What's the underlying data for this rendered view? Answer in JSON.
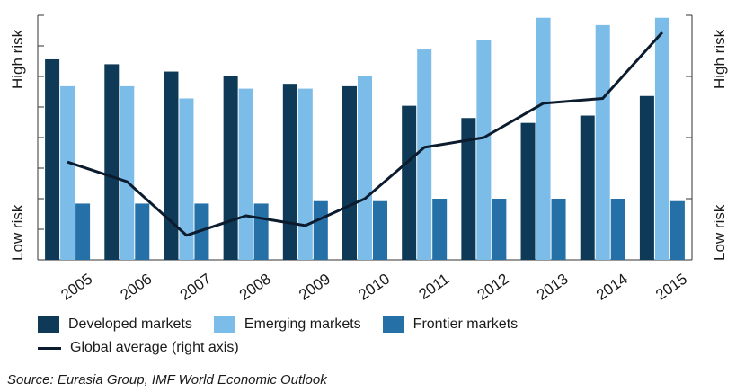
{
  "chart_data": {
    "type": "bar",
    "categories": [
      "2005",
      "2006",
      "2007",
      "2008",
      "2009",
      "2010",
      "2011",
      "2012",
      "2013",
      "2014",
      "2015"
    ],
    "series": [
      {
        "name": "Developed markets",
        "kind": "bar",
        "color": "#0e3a57",
        "values": [
          82,
          80,
          77,
          75,
          72,
          71,
          63,
          58,
          56,
          59,
          67
        ]
      },
      {
        "name": "Emerging markets",
        "kind": "bar",
        "color": "#7bbce8",
        "values": [
          71,
          71,
          66,
          70,
          70,
          75,
          86,
          90,
          99,
          96,
          99
        ]
      },
      {
        "name": "Frontier markets",
        "kind": "bar",
        "color": "#2670a8",
        "values": [
          23,
          23,
          23,
          23,
          24,
          24,
          25,
          25,
          25,
          25,
          24
        ]
      },
      {
        "name": "Global average (right axis)",
        "kind": "line",
        "color": "#0c1c2e",
        "axis": "right",
        "values": [
          40,
          32,
          10,
          18,
          14,
          25,
          46,
          50,
          64,
          66,
          93
        ]
      }
    ],
    "ylim": [
      0,
      100
    ],
    "y2lim": [
      0,
      100
    ],
    "ylabel_top": "High risk",
    "ylabel_bottom": "Low risk",
    "y2label_top": "High risk",
    "y2label_bottom": "Low risk",
    "legend_position": "bottom"
  },
  "source": "Source: Eurasia Group, IMF World Economic Outlook"
}
